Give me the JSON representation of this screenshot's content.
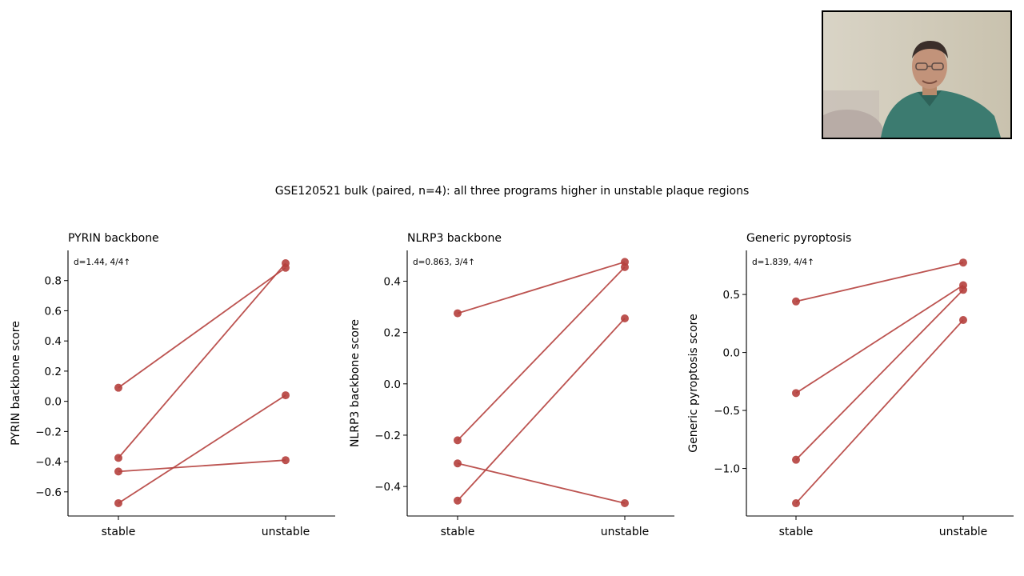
{
  "figure": {
    "suptitle": "GSE120521 bulk (paired, n=4): all three programs higher in unstable plaque regions"
  },
  "colors": {
    "series": "#b5403d",
    "axis": "#000000"
  },
  "webcam": {
    "content": "presenter-video"
  },
  "chart_data": [
    {
      "type": "line",
      "title": "PYRIN backbone",
      "annotation": "d=1.44, 4/4↑",
      "categories": [
        "stable",
        "unstable"
      ],
      "ylabel": "PYRIN backbone score",
      "ylim": [
        -0.76,
        1.0
      ],
      "yticks": [
        -0.6,
        -0.4,
        -0.2,
        0.0,
        0.2,
        0.4,
        0.6,
        0.8
      ],
      "ytick_labels": [
        "−0.6",
        "−0.4",
        "−0.2",
        "0.0",
        "0.2",
        "0.4",
        "0.6",
        "0.8"
      ],
      "series": [
        {
          "values": [
            0.09,
            0.885
          ]
        },
        {
          "values": [
            -0.375,
            0.915
          ]
        },
        {
          "values": [
            -0.465,
            -0.39
          ]
        },
        {
          "values": [
            -0.675,
            0.04
          ]
        }
      ]
    },
    {
      "type": "line",
      "title": "NLRP3 backbone",
      "annotation": "d=0.863, 3/4↑",
      "categories": [
        "stable",
        "unstable"
      ],
      "ylabel": "NLRP3 backbone score",
      "ylim": [
        -0.515,
        0.52
      ],
      "yticks": [
        -0.4,
        -0.2,
        0.0,
        0.2,
        0.4
      ],
      "ytick_labels": [
        "−0.4",
        "−0.2",
        "0.0",
        "0.2",
        "0.4"
      ],
      "series": [
        {
          "values": [
            0.275,
            0.475
          ]
        },
        {
          "values": [
            -0.22,
            0.455
          ]
        },
        {
          "values": [
            -0.31,
            -0.465
          ]
        },
        {
          "values": [
            -0.455,
            0.255
          ]
        }
      ]
    },
    {
      "type": "line",
      "title": "Generic pyroptosis",
      "annotation": "d=1.839, 4/4↑",
      "categories": [
        "stable",
        "unstable"
      ],
      "ylabel": "Generic pyroptosis score",
      "ylim": [
        -1.41,
        0.88
      ],
      "yticks": [
        -1.0,
        -0.5,
        0.0,
        0.5
      ],
      "ytick_labels": [
        "−1.0",
        "−0.5",
        "0.0",
        "0.5"
      ],
      "series": [
        {
          "values": [
            0.44,
            0.775
          ]
        },
        {
          "values": [
            -0.35,
            0.58
          ]
        },
        {
          "values": [
            -0.925,
            0.54
          ]
        },
        {
          "values": [
            -1.3,
            0.28
          ]
        }
      ]
    }
  ]
}
